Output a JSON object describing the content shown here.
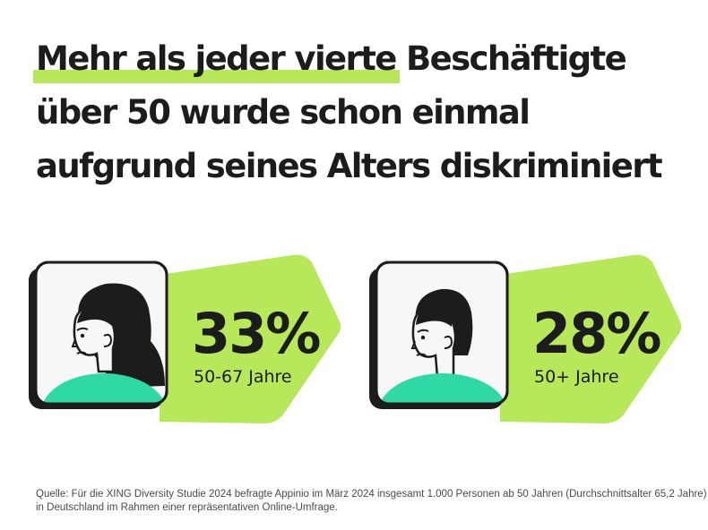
{
  "headline": {
    "highlighted": "Mehr als jeder vierte",
    "line1_rest": " Beschäftigte",
    "line2": "über 50 wurde schon einmal",
    "line3": "aufgrund seines Alters diskriminiert"
  },
  "stats": [
    {
      "value": "33%",
      "label": "50-67 Jahre",
      "share_percent": 33
    },
    {
      "value": "28%",
      "label": "50+ Jahre",
      "share_percent": 28
    }
  ],
  "source": {
    "line1": "Quelle: Für die XING Diversity Studie 2024 befragte Appinio im März 2024 insgesamt 1.000 Personen ab 50 Jahren (Durchschnittsalter 65,2 Jahre)",
    "line2": "in Deutschland im Rahmen einer repräsentativen Online-Umfrage."
  },
  "colors": {
    "accent_green": "#b7e85a",
    "mint": "#2ed9a6",
    "ink": "#1c1c1c",
    "card_bg": "#f7f7f7"
  },
  "icons": [
    "worried-woman-long-hair-icon",
    "worried-woman-short-hair-icon"
  ]
}
